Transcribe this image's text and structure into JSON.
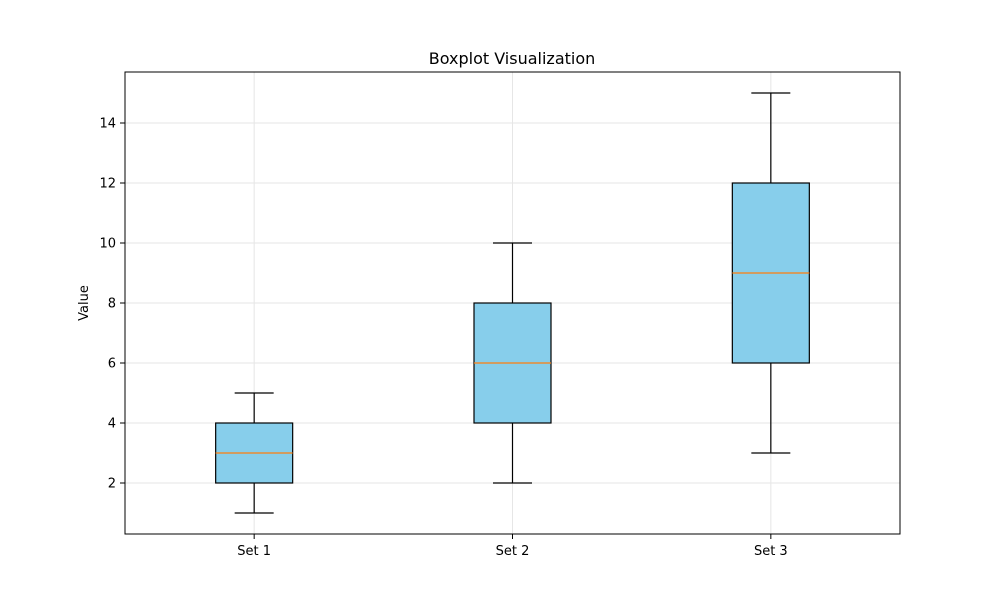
{
  "chart_data": {
    "type": "boxplot",
    "title": "Boxplot Visualization",
    "xlabel": "",
    "ylabel": "Value",
    "categories": [
      "Set 1",
      "Set 2",
      "Set 3"
    ],
    "boxes": [
      {
        "category": "Set 1",
        "whisker_low": 1,
        "q1": 2,
        "median": 3,
        "q3": 4,
        "whisker_high": 5
      },
      {
        "category": "Set 2",
        "whisker_low": 2,
        "q1": 4,
        "median": 6,
        "q3": 8,
        "whisker_high": 10
      },
      {
        "category": "Set 3",
        "whisker_low": 3,
        "q1": 6,
        "median": 9,
        "q3": 12,
        "whisker_high": 15
      }
    ],
    "ylim": [
      0.3,
      15.7
    ],
    "yticks": [
      2,
      4,
      6,
      8,
      10,
      12,
      14
    ],
    "grid": true,
    "colors": {
      "box_fill": "#87ceeb",
      "median": "#ff7f0e",
      "edge": "#000000",
      "grid": "#e6e6e6"
    }
  }
}
